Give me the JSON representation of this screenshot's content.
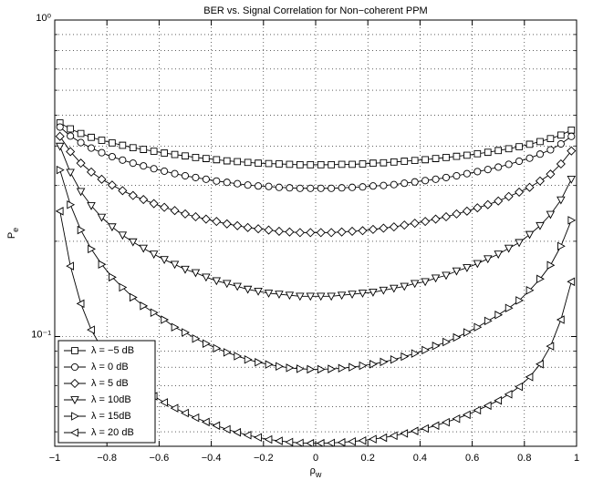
{
  "chart_data": {
    "type": "line",
    "title": "BER vs. Signal Correlation for Non−coherent PPM",
    "xlabel": {
      "text": "ρ",
      "sub": "w"
    },
    "ylabel": {
      "text": "P",
      "sub": "e"
    },
    "log_y": true,
    "grid": true,
    "legend_position": "lower left",
    "xlim": [
      -1,
      1
    ],
    "ylim": [
      0.045,
      1
    ],
    "xticks": [
      {
        "value": -1,
        "label": "−1"
      },
      {
        "value": -0.8,
        "label": "−0.8"
      },
      {
        "value": -0.6,
        "label": "−0.6"
      },
      {
        "value": -0.4,
        "label": "−0.4"
      },
      {
        "value": -0.2,
        "label": "−0.2"
      },
      0,
      0.2,
      0.4,
      0.6,
      0.8,
      1
    ],
    "yticks": [
      {
        "value": 0.1,
        "label": "10⁻¹"
      },
      {
        "value": 1,
        "label": "10⁰"
      }
    ],
    "minor_yticks": [
      0.05,
      0.06,
      0.07,
      0.08,
      0.09,
      0.2,
      0.3,
      0.4,
      0.5,
      0.6,
      0.7,
      0.8,
      0.9
    ],
    "x": [
      -0.98,
      -0.94,
      -0.9,
      -0.86,
      -0.82,
      -0.78,
      -0.74,
      -0.7,
      -0.66,
      -0.62,
      -0.58,
      -0.54,
      -0.5,
      -0.46,
      -0.42,
      -0.38,
      -0.34,
      -0.3,
      -0.26,
      -0.22,
      -0.18,
      -0.14,
      -0.1,
      -0.06,
      -0.02,
      0.02,
      0.06,
      0.1,
      0.14,
      0.18,
      0.22,
      0.26,
      0.3,
      0.34,
      0.38,
      0.42,
      0.46,
      0.5,
      0.54,
      0.58,
      0.62,
      0.66,
      0.7,
      0.74,
      0.78,
      0.82,
      0.86,
      0.9,
      0.94,
      0.98
    ],
    "series": [
      {
        "name": "λ = −5 dB",
        "color": "#000000",
        "marker": "square",
        "values": [
          0.473,
          0.453,
          0.438,
          0.426,
          0.417,
          0.409,
          0.402,
          0.395,
          0.39,
          0.385,
          0.38,
          0.376,
          0.372,
          0.368,
          0.365,
          0.362,
          0.359,
          0.357,
          0.355,
          0.353,
          0.352,
          0.351,
          0.35,
          0.349,
          0.349,
          0.349,
          0.349,
          0.35,
          0.35,
          0.351,
          0.353,
          0.354,
          0.356,
          0.358,
          0.36,
          0.362,
          0.365,
          0.368,
          0.371,
          0.374,
          0.378,
          0.382,
          0.387,
          0.392,
          0.398,
          0.405,
          0.413,
          0.422,
          0.433,
          0.449
        ]
      },
      {
        "name": "λ = 0 dB",
        "color": "#000000",
        "marker": "circle",
        "values": [
          0.459,
          0.43,
          0.41,
          0.394,
          0.381,
          0.37,
          0.361,
          0.353,
          0.346,
          0.339,
          0.333,
          0.327,
          0.322,
          0.318,
          0.314,
          0.31,
          0.307,
          0.304,
          0.301,
          0.299,
          0.298,
          0.296,
          0.295,
          0.294,
          0.294,
          0.294,
          0.294,
          0.295,
          0.296,
          0.297,
          0.299,
          0.3,
          0.302,
          0.305,
          0.308,
          0.311,
          0.314,
          0.318,
          0.322,
          0.327,
          0.332,
          0.337,
          0.343,
          0.35,
          0.358,
          0.366,
          0.377,
          0.389,
          0.406,
          0.429
        ]
      },
      {
        "name": "λ = 5 dB",
        "color": "#000000",
        "marker": "diamond",
        "values": [
          0.429,
          0.384,
          0.353,
          0.331,
          0.314,
          0.301,
          0.289,
          0.279,
          0.271,
          0.263,
          0.256,
          0.25,
          0.244,
          0.239,
          0.235,
          0.231,
          0.227,
          0.224,
          0.221,
          0.219,
          0.217,
          0.215,
          0.214,
          0.213,
          0.213,
          0.213,
          0.213,
          0.214,
          0.215,
          0.216,
          0.218,
          0.22,
          0.222,
          0.225,
          0.228,
          0.231,
          0.235,
          0.239,
          0.244,
          0.249,
          0.255,
          0.261,
          0.268,
          0.277,
          0.286,
          0.296,
          0.31,
          0.326,
          0.351,
          0.386
        ]
      },
      {
        "name": "λ = 10dB",
        "color": "#000000",
        "marker": "triangle-down",
        "values": [
          0.399,
          0.33,
          0.287,
          0.259,
          0.238,
          0.222,
          0.209,
          0.199,
          0.19,
          0.182,
          0.175,
          0.169,
          0.163,
          0.159,
          0.154,
          0.15,
          0.147,
          0.144,
          0.141,
          0.139,
          0.137,
          0.136,
          0.135,
          0.134,
          0.134,
          0.134,
          0.134,
          0.135,
          0.136,
          0.137,
          0.138,
          0.14,
          0.142,
          0.144,
          0.147,
          0.149,
          0.153,
          0.156,
          0.161,
          0.165,
          0.17,
          0.176,
          0.182,
          0.19,
          0.198,
          0.21,
          0.224,
          0.243,
          0.27,
          0.314
        ]
      },
      {
        "name": "λ = 15dB",
        "color": "#000000",
        "marker": "triangle-right",
        "values": [
          0.336,
          0.261,
          0.217,
          0.189,
          0.169,
          0.154,
          0.143,
          0.133,
          0.125,
          0.119,
          0.113,
          0.107,
          0.103,
          0.0985,
          0.095,
          0.0918,
          0.0891,
          0.0867,
          0.0846,
          0.0829,
          0.0816,
          0.0805,
          0.0796,
          0.0791,
          0.0788,
          0.0788,
          0.079,
          0.0794,
          0.08,
          0.0809,
          0.0818,
          0.0831,
          0.0846,
          0.0864,
          0.0884,
          0.0906,
          0.0934,
          0.0961,
          0.0993,
          0.103,
          0.107,
          0.112,
          0.117,
          0.123,
          0.13,
          0.14,
          0.152,
          0.168,
          0.193,
          0.233
        ]
      },
      {
        "name": "λ = 20 dB",
        "color": "#000000",
        "marker": "triangle-left",
        "values": [
          0.249,
          0.167,
          0.127,
          0.105,
          0.0919,
          0.0831,
          0.0766,
          0.0718,
          0.0679,
          0.0648,
          0.0619,
          0.0594,
          0.0573,
          0.0554,
          0.0537,
          0.0523,
          0.0509,
          0.0498,
          0.0488,
          0.048,
          0.0473,
          0.0468,
          0.0464,
          0.0461,
          0.046,
          0.046,
          0.0461,
          0.0463,
          0.0466,
          0.0469,
          0.0474,
          0.0479,
          0.0486,
          0.0494,
          0.0503,
          0.0512,
          0.0523,
          0.0536,
          0.055,
          0.0566,
          0.0585,
          0.0605,
          0.0628,
          0.0657,
          0.0694,
          0.0745,
          0.0818,
          0.0932,
          0.113,
          0.149
        ]
      }
    ]
  }
}
